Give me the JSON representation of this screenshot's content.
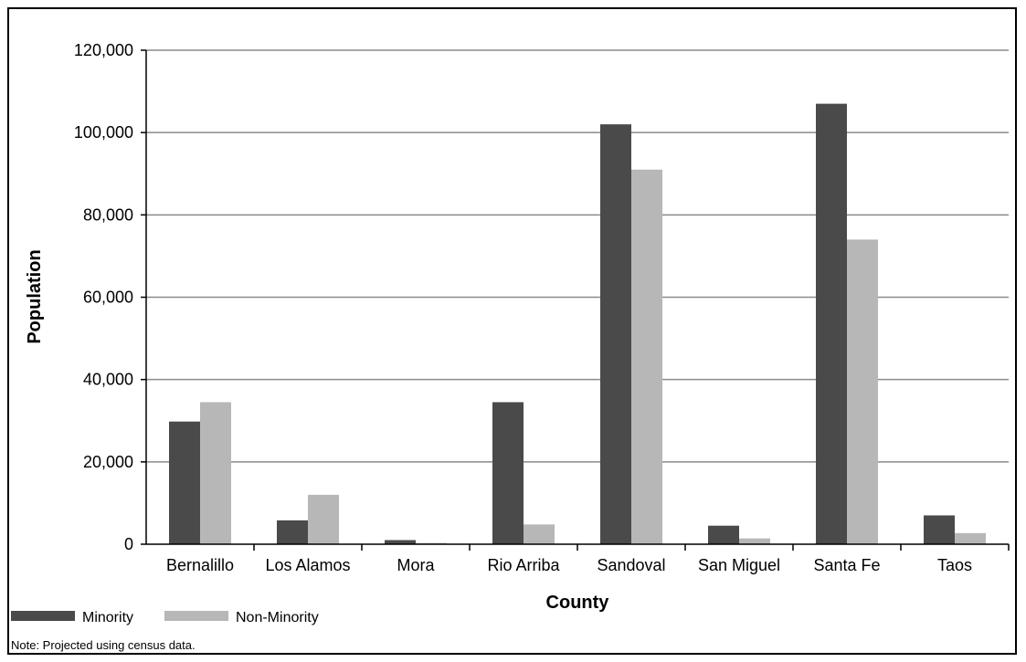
{
  "chart_data": {
    "type": "bar",
    "categories": [
      "Bernalillo",
      "Los Alamos",
      "Mora",
      "Rio Arriba",
      "Sandoval",
      "San Miguel",
      "Santa Fe",
      "Taos"
    ],
    "series": [
      {
        "name": "Minority",
        "color": "#4a4a4a",
        "values": [
          29800,
          5800,
          1000,
          34500,
          102000,
          4500,
          107000,
          7000
        ]
      },
      {
        "name": "Non-Minority",
        "color": "#b7b7b7",
        "values": [
          34500,
          12000,
          300,
          4800,
          91000,
          1400,
          74000,
          2700
        ]
      }
    ],
    "xlabel": "County",
    "ylabel": "Population",
    "ylim": [
      0,
      120000
    ],
    "yticks": [
      0,
      20000,
      40000,
      60000,
      80000,
      100000,
      120000
    ],
    "ytick_labels": [
      "0",
      "20,000",
      "40,000",
      "60,000",
      "80,000",
      "100,000",
      "120,000"
    ],
    "grid": true,
    "legend_position": "bottom-left",
    "note": "Note: Projected using census data."
  }
}
